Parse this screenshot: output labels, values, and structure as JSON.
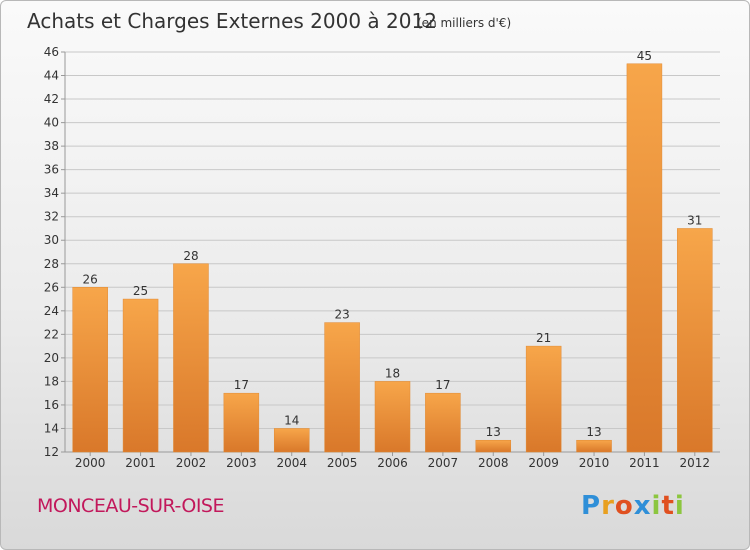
{
  "title": "Achats et Charges Externes 2000 à 2012",
  "subtitle": "(en milliers d'€)",
  "town": "MONCEAU-SUR-OISE",
  "logo": {
    "text": "Proxiti",
    "letters": [
      {
        "ch": "P",
        "color": "#2f8fd8"
      },
      {
        "ch": "r",
        "color": "#e8a020"
      },
      {
        "ch": "o",
        "color": "#e05020"
      },
      {
        "ch": "x",
        "color": "#2f8fd8"
      },
      {
        "ch": "i",
        "color": "#8cc63f"
      },
      {
        "ch": "t",
        "color": "#e05020"
      },
      {
        "ch": "i",
        "color": "#8cc63f"
      }
    ]
  },
  "colors": {
    "bar_light": "#f7a64a",
    "bar_dark": "#d9782a",
    "grid": "#c8c8c8",
    "axis": "#999999",
    "town": "#c2185b"
  },
  "chart_data": {
    "type": "bar",
    "categories": [
      "2000",
      "2001",
      "2002",
      "2003",
      "2004",
      "2005",
      "2006",
      "2007",
      "2008",
      "2009",
      "2010",
      "2011",
      "2012"
    ],
    "values": [
      26,
      25,
      28,
      17,
      14,
      23,
      18,
      17,
      13,
      21,
      13,
      45,
      31
    ],
    "title": "Achats et Charges Externes 2000 à 2012",
    "subtitle": "(en milliers d'€)",
    "xlabel": "",
    "ylabel": "",
    "ylim": [
      12,
      46
    ],
    "yticks": [
      12,
      14,
      16,
      18,
      20,
      22,
      24,
      26,
      28,
      30,
      32,
      34,
      36,
      38,
      40,
      42,
      44,
      46
    ],
    "grid": true,
    "legend": "none"
  }
}
